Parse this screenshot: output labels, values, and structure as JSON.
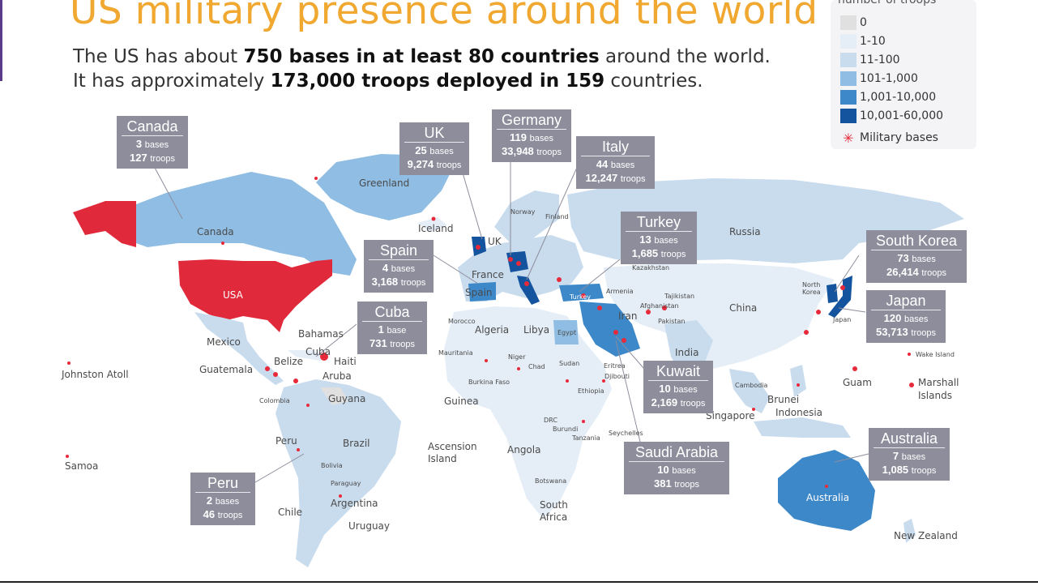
{
  "title": "US military presence around the world",
  "subtitle": {
    "line1_pre": "The US has about ",
    "line1_bold": "750 bases in at least 80 countries",
    "line1_post": " around the world.",
    "line2_pre": "It has approximately ",
    "line2_bold": "173,000 troops deployed in 159",
    "line2_post": " countries."
  },
  "legend": {
    "title": "number of troops",
    "items": [
      {
        "label": "0",
        "color": "#e0e0e0"
      },
      {
        "label": "1-10",
        "color": "#e5eef7"
      },
      {
        "label": "11-100",
        "color": "#c9dcee"
      },
      {
        "label": "101-1,000",
        "color": "#8fbde3"
      },
      {
        "label": "1,001-10,000",
        "color": "#3d88c9"
      },
      {
        "label": "10,001-60,000",
        "color": "#14549e"
      }
    ],
    "bases_label": "Military bases",
    "bases_color": "#e8293a"
  },
  "callouts": [
    {
      "name": "Canada",
      "bases": "3",
      "bases_unit": "bases",
      "troops": "127",
      "troops_unit": "troops"
    },
    {
      "name": "UK",
      "bases": "25",
      "bases_unit": "bases",
      "troops": "9,274",
      "troops_unit": "troops"
    },
    {
      "name": "Germany",
      "bases": "119",
      "bases_unit": "bases",
      "troops": "33,948",
      "troops_unit": "troops"
    },
    {
      "name": "Italy",
      "bases": "44",
      "bases_unit": "bases",
      "troops": "12,247",
      "troops_unit": "troops"
    },
    {
      "name": "Spain",
      "bases": "4",
      "bases_unit": "bases",
      "troops": "3,168",
      "troops_unit": "troops"
    },
    {
      "name": "Turkey",
      "bases": "13",
      "bases_unit": "bases",
      "troops": "1,685",
      "troops_unit": "troops"
    },
    {
      "name": "South Korea",
      "bases": "73",
      "bases_unit": "bases",
      "troops": "26,414",
      "troops_unit": "troops"
    },
    {
      "name": "Japan",
      "bases": "120",
      "bases_unit": "bases",
      "troops": "53,713",
      "troops_unit": "troops"
    },
    {
      "name": "Cuba",
      "bases": "1",
      "bases_unit": "base",
      "troops": "731",
      "troops_unit": "troops"
    },
    {
      "name": "Kuwait",
      "bases": "10",
      "bases_unit": "bases",
      "troops": "2,169",
      "troops_unit": "troops"
    },
    {
      "name": "Saudi Arabia",
      "bases": "10",
      "bases_unit": "bases",
      "troops": "381",
      "troops_unit": "troops"
    },
    {
      "name": "Australia",
      "bases": "7",
      "bases_unit": "bases",
      "troops": "1,085",
      "troops_unit": "troops"
    },
    {
      "name": "Peru",
      "bases": "2",
      "bases_unit": "bases",
      "troops": "46",
      "troops_unit": "troops"
    }
  ],
  "map_labels": {
    "greenland": "Greenland",
    "canada": "Canada",
    "usa": "USA",
    "mexico": "Mexico",
    "bahamas": "Bahamas",
    "cuba": "Cuba",
    "haiti": "Haiti",
    "belize": "Belize",
    "guatemala": "Guatemala",
    "aruba": "Aruba",
    "guyana": "Guyana",
    "colombia": "Colombia",
    "peru": "Peru",
    "brazil": "Brazil",
    "bolivia": "Bolivia",
    "paraguay": "Paraguay",
    "chile": "Chile",
    "argentina": "Argentina",
    "uruguay": "Uruguay",
    "johnston_atoll": "Johnston Atoll",
    "samoa": "Samoa",
    "iceland": "Iceland",
    "uk": "UK",
    "norway": "Norway",
    "finland": "Finland",
    "france": "France",
    "spain": "Spain",
    "morocco": "Morocco",
    "algeria": "Algeria",
    "libya": "Libya",
    "egypt": "Egypt",
    "mauritania": "Mauritania",
    "niger": "Niger",
    "chad": "Chad",
    "sudan": "Sudan",
    "eritrea": "Eritrea",
    "djibouti": "Djibouti",
    "burkina_faso": "Burkina Faso",
    "guinea": "Guinea",
    "ethiopia": "Ethiopia",
    "drc": "DRC",
    "burundi": "Burundi",
    "tanzania": "Tanzania",
    "seychelles": "Seychelles",
    "ascension": "Ascension\nIsland",
    "angola": "Angola",
    "botswana": "Botswana",
    "south_africa": "South\nAfrica",
    "russia": "Russia",
    "kazakhstan": "Kazakhstan",
    "turkey": "Turkey",
    "armenia": "Armenia",
    "tajikistan": "Tajikistan",
    "afghanistan": "Afghanistan",
    "iran": "Iran",
    "pakistan": "Pakistan",
    "india": "India",
    "china": "China",
    "north_korea": "North\nKorea",
    "japan": "Japan",
    "wake_island": "Wake Island",
    "guam": "Guam",
    "marshall": "Marshall\nIslands",
    "cambodia": "Cambodia",
    "brunei": "Brunei",
    "indonesia": "Indonesia",
    "singapore": "Singapore",
    "australia": "Australia",
    "new_zealand": "New Zealand"
  }
}
